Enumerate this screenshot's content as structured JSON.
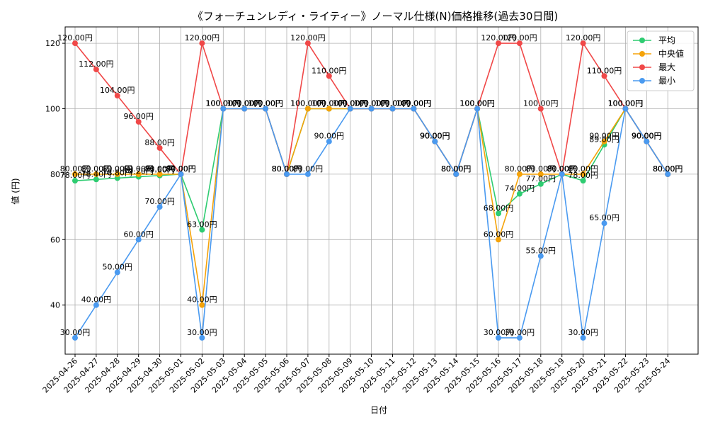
{
  "chart_data": {
    "type": "line",
    "title": "《フォーチュンレディ・ライティー》ノーマル仕様(N)価格推移(過去30日間)",
    "xlabel": "日付",
    "ylabel": "値 (円)",
    "ylim": [
      25,
      125
    ],
    "yticks": [
      40,
      60,
      80,
      100,
      120
    ],
    "grid": true,
    "legend_position": "top-right",
    "label_suffix": "円",
    "categories": [
      "2025-04-26",
      "2025-04-27",
      "2025-04-28",
      "2025-04-29",
      "2025-04-30",
      "2025-05-01",
      "2025-05-02",
      "2025-05-03",
      "2025-05-04",
      "2025-05-05",
      "2025-05-06",
      "2025-05-07",
      "2025-05-08",
      "2025-05-09",
      "2025-05-10",
      "2025-05-11",
      "2025-05-12",
      "2025-05-13",
      "2025-05-14",
      "2025-05-15",
      "2025-05-16",
      "2025-05-17",
      "2025-05-18",
      "2025-05-19",
      "2025-05-20",
      "2025-05-21",
      "2025-05-22",
      "2025-05-23",
      "2025-05-24"
    ],
    "series": [
      {
        "name": "平均",
        "color": "#2ecc71",
        "values": [
          78,
          78.4,
          78.8,
          79.2,
          79.6,
          80,
          63,
          100,
          100,
          100,
          80,
          100,
          100,
          100,
          100,
          100,
          100,
          90,
          80,
          100,
          68,
          74,
          77,
          80,
          78,
          89,
          100,
          90,
          80
        ]
      },
      {
        "name": "中央値",
        "color": "#f5a30a",
        "values": [
          80,
          80,
          80,
          80,
          80,
          80,
          40,
          100,
          100,
          100,
          80,
          100,
          100,
          100,
          100,
          100,
          100,
          90,
          80,
          100,
          60,
          80,
          80,
          80,
          80,
          90,
          100,
          90,
          80
        ]
      },
      {
        "name": "最大",
        "color": "#f04848",
        "values": [
          120,
          112,
          104,
          96,
          88,
          80,
          120,
          100,
          100,
          100,
          80,
          120,
          110,
          100,
          100,
          100,
          100,
          90,
          80,
          100,
          120,
          120,
          100,
          80,
          120,
          110,
          100,
          90,
          80
        ]
      },
      {
        "name": "最小",
        "color": "#4a9af0",
        "values": [
          30,
          40,
          50,
          60,
          70,
          80,
          30,
          100,
          100,
          100,
          80,
          80,
          90,
          100,
          100,
          100,
          100,
          90,
          80,
          100,
          30,
          30,
          55,
          80,
          30,
          65,
          100,
          90,
          80
        ]
      }
    ]
  }
}
